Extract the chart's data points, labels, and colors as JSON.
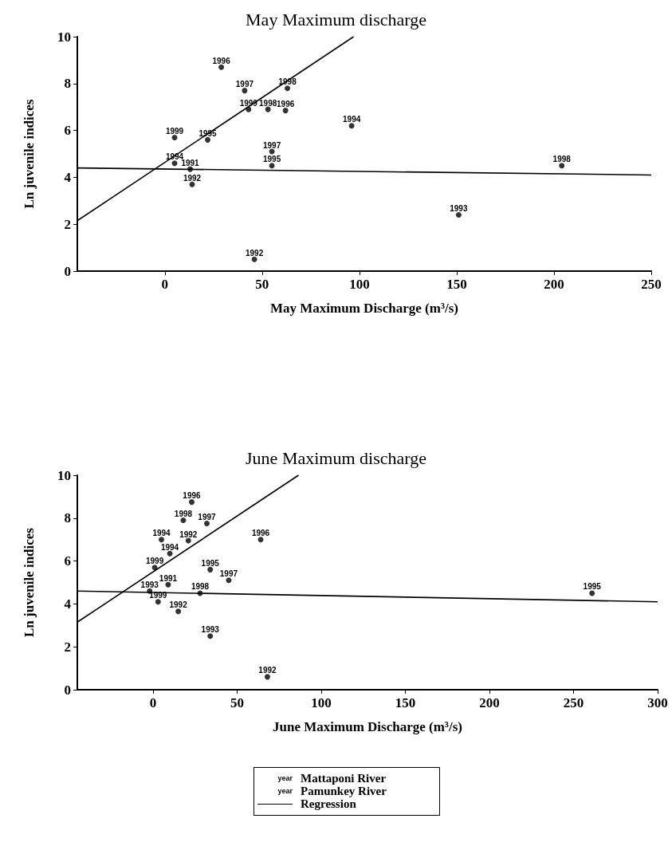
{
  "chart_data": [
    {
      "type": "scatter",
      "title": "May Maximum discharge",
      "xlabel": "May Maximum Discharge (m³/s)",
      "ylabel": "Ln juvenile indices",
      "xlim": [
        -45,
        250
      ],
      "xticks": [
        0,
        50,
        100,
        150,
        200,
        250
      ],
      "ylim": [
        0,
        10
      ],
      "yticks": [
        0,
        2,
        4,
        6,
        8,
        10
      ],
      "grid": false,
      "marker": "circle",
      "series": [
        {
          "color": "#000000",
          "x": [
            29,
            41,
            63,
            43,
            53,
            62,
            96,
            5,
            22,
            55,
            55,
            5,
            13,
            14,
            46,
            151,
            204
          ],
          "values": [
            8.7,
            7.7,
            7.8,
            6.9,
            6.9,
            6.85,
            6.2,
            5.7,
            5.6,
            5.1,
            4.5,
            4.6,
            4.35,
            3.7,
            0.5,
            2.4,
            4.5
          ]
        },
        {
          "type": "line",
          "marker": "none",
          "color": "#000000",
          "x": [
            -45,
            97
          ],
          "values": [
            2.15,
            10
          ]
        },
        {
          "type": "line",
          "marker": "none",
          "color": "#000000",
          "x": [
            -45,
            250
          ],
          "values": [
            4.4,
            4.1
          ]
        }
      ],
      "annotations": [
        {
          "text": "1996",
          "x": 29,
          "y": 8.7
        },
        {
          "text": "1997",
          "x": 41,
          "y": 7.7
        },
        {
          "text": "1998",
          "x": 63,
          "y": 7.8
        },
        {
          "text": "1999",
          "x": 43,
          "y": 6.9
        },
        {
          "text": "1998",
          "x": 53,
          "y": 6.9
        },
        {
          "text": "1996",
          "x": 62,
          "y": 6.85
        },
        {
          "text": "1994",
          "x": 96,
          "y": 6.2
        },
        {
          "text": "1999",
          "x": 5,
          "y": 5.7
        },
        {
          "text": "1995",
          "x": 22,
          "y": 5.6
        },
        {
          "text": "1997",
          "x": 55,
          "y": 5.1
        },
        {
          "text": "1995",
          "x": 55,
          "y": 4.5
        },
        {
          "text": "1994",
          "x": 5,
          "y": 4.6
        },
        {
          "text": "1991",
          "x": 13,
          "y": 4.35
        },
        {
          "text": "1992",
          "x": 14,
          "y": 3.7
        },
        {
          "text": "1992",
          "x": 46,
          "y": 0.5
        },
        {
          "text": "1993",
          "x": 151,
          "y": 2.4
        },
        {
          "text": "1998",
          "x": 204,
          "y": 4.5
        }
      ]
    },
    {
      "type": "scatter",
      "title": "June Maximum discharge",
      "xlabel": "June Maximum Discharge (m³/s)",
      "ylabel": "Ln juvenile indices",
      "xlim": [
        -45,
        300
      ],
      "xticks": [
        0,
        50,
        100,
        150,
        200,
        250,
        300
      ],
      "ylim": [
        0,
        10
      ],
      "yticks": [
        0,
        2,
        4,
        6,
        8,
        10
      ],
      "grid": false,
      "marker": "circle",
      "series": [
        {
          "color": "#000000",
          "x": [
            23,
            18,
            32,
            5,
            21,
            64,
            10,
            1,
            34,
            45,
            9,
            -2,
            3,
            28,
            15,
            34,
            68,
            261
          ],
          "values": [
            8.75,
            7.9,
            7.75,
            7.0,
            6.95,
            7.0,
            6.35,
            5.7,
            5.6,
            5.1,
            4.9,
            4.6,
            4.1,
            4.5,
            3.65,
            2.5,
            0.6,
            4.5
          ]
        },
        {
          "type": "line",
          "marker": "none",
          "color": "#000000",
          "x": [
            -45,
            86.5
          ],
          "values": [
            3.15,
            10
          ]
        },
        {
          "type": "line",
          "marker": "none",
          "color": "#000000",
          "x": [
            -45,
            300
          ],
          "values": [
            4.6,
            4.1
          ]
        }
      ],
      "annotations": [
        {
          "text": "1996",
          "x": 23,
          "y": 8.75
        },
        {
          "text": "1998",
          "x": 18,
          "y": 7.9
        },
        {
          "text": "1997",
          "x": 32,
          "y": 7.75
        },
        {
          "text": "1994",
          "x": 5,
          "y": 7.0
        },
        {
          "text": "1992",
          "x": 21,
          "y": 6.95
        },
        {
          "text": "1996",
          "x": 64,
          "y": 7.0
        },
        {
          "text": "1994",
          "x": 10,
          "y": 6.35
        },
        {
          "text": "1999",
          "x": 1,
          "y": 5.7
        },
        {
          "text": "1995",
          "x": 34,
          "y": 5.6
        },
        {
          "text": "1997",
          "x": 45,
          "y": 5.1
        },
        {
          "text": "1991",
          "x": 9,
          "y": 4.9
        },
        {
          "text": "1993",
          "x": -2,
          "y": 4.6
        },
        {
          "text": "1999",
          "x": 3,
          "y": 4.1
        },
        {
          "text": "1998",
          "x": 28,
          "y": 4.5
        },
        {
          "text": "1992",
          "x": 15,
          "y": 3.65
        },
        {
          "text": "1993",
          "x": 34,
          "y": 2.5
        },
        {
          "text": "1992",
          "x": 68,
          "y": 0.6
        },
        {
          "text": "1995",
          "x": 261,
          "y": 4.5
        }
      ]
    },
    {
      "type": "other",
      "annotations": [
        "year",
        "Mattaponi River",
        "year",
        "Pamunkey River",
        "Regression"
      ]
    }
  ]
}
